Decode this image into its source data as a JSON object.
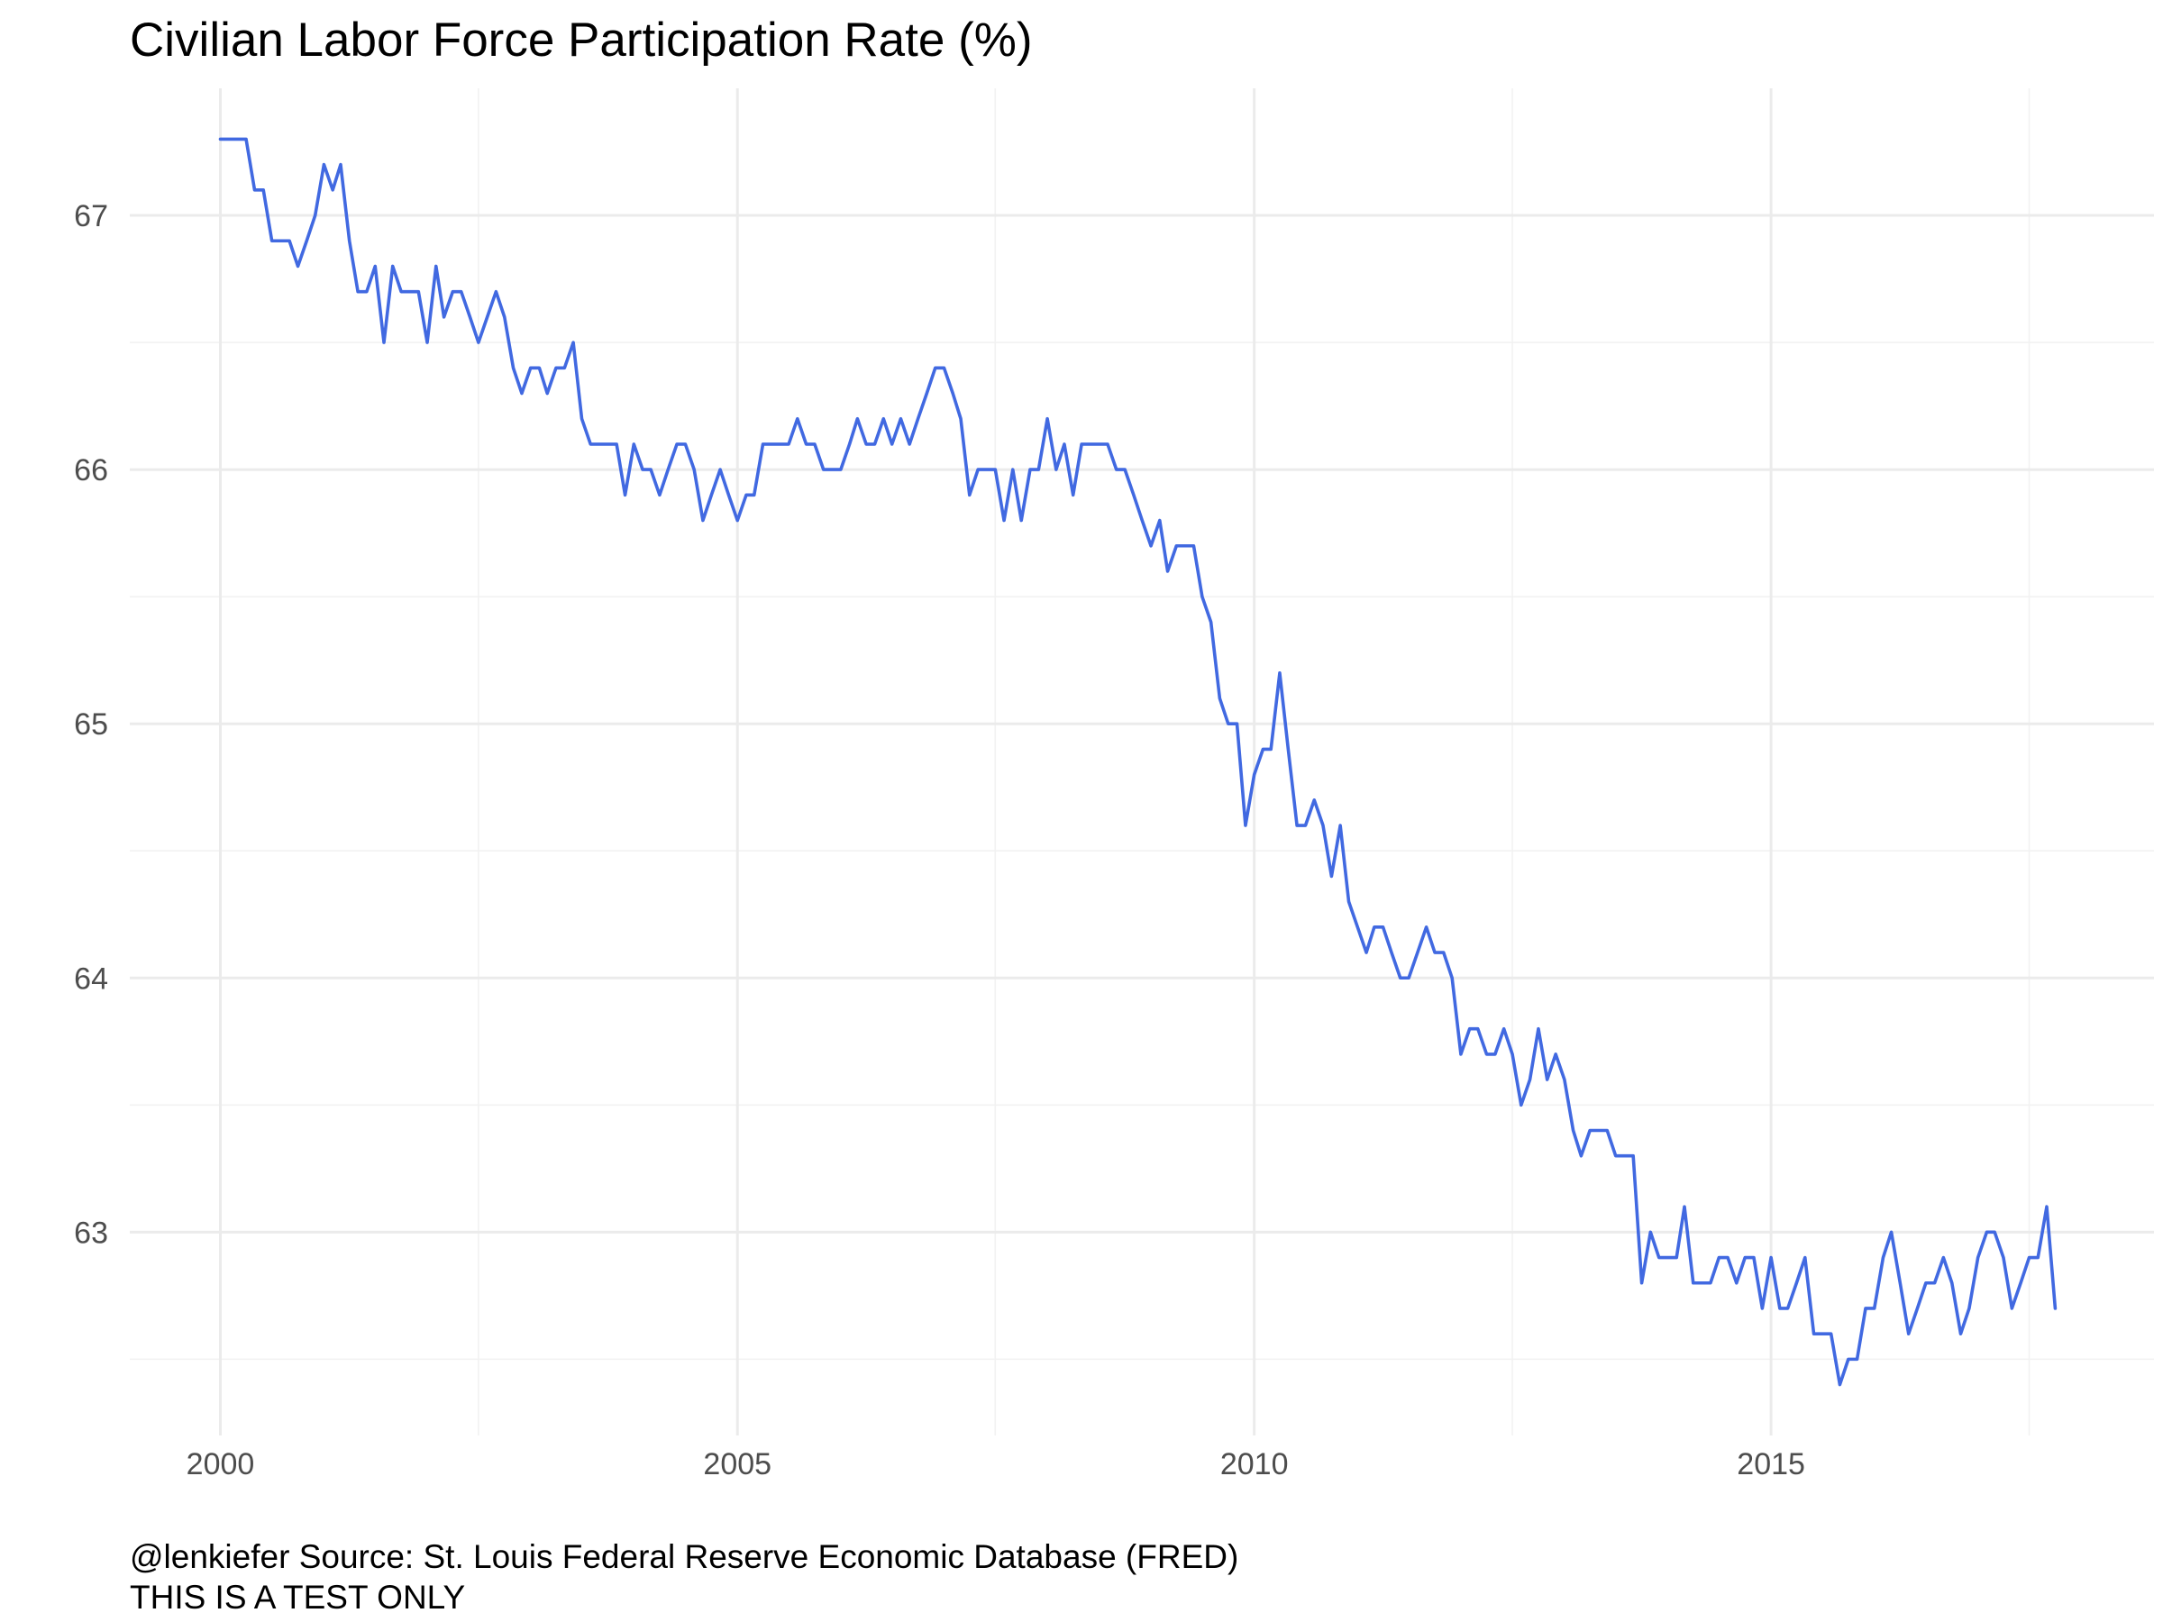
{
  "chart_data": {
    "type": "line",
    "title": "Civilian Labor Force Participation Rate (%)",
    "xlabel": "",
    "ylabel": "",
    "caption_lines": [
      "@lenkiefer Source: St. Louis Federal Reserve Economic Database (FRED)",
      "THIS IS A TEST ONLY"
    ],
    "x_ticks": [
      2000,
      2005,
      2010,
      2015
    ],
    "y_ticks": [
      63,
      64,
      65,
      66,
      67
    ],
    "xlim": [
      "1999-02-15",
      "2018-09-15"
    ],
    "ylim": [
      62.2,
      67.5
    ],
    "grid": true,
    "legend": "none",
    "color": "#4169e1",
    "series": [
      {
        "x": [
          "2000-01-01",
          "2000-02-01",
          "2000-03-01",
          "2000-04-01",
          "2000-05-01",
          "2000-06-01",
          "2000-07-01",
          "2000-08-01",
          "2000-09-01",
          "2000-10-01",
          "2000-11-01",
          "2000-12-01",
          "2001-01-01",
          "2001-02-01",
          "2001-03-01",
          "2001-04-01",
          "2001-05-01",
          "2001-06-01",
          "2001-07-01",
          "2001-08-01",
          "2001-09-01",
          "2001-10-01",
          "2001-11-01",
          "2001-12-01",
          "2002-01-01",
          "2002-02-01",
          "2002-03-01",
          "2002-04-01",
          "2002-05-01",
          "2002-06-01",
          "2002-07-01",
          "2002-08-01",
          "2002-09-01",
          "2002-10-01",
          "2002-11-01",
          "2002-12-01",
          "2003-01-01",
          "2003-02-01",
          "2003-03-01",
          "2003-04-01",
          "2003-05-01",
          "2003-06-01",
          "2003-07-01",
          "2003-08-01",
          "2003-09-01",
          "2003-10-01",
          "2003-11-01",
          "2003-12-01",
          "2004-01-01",
          "2004-02-01",
          "2004-03-01",
          "2004-04-01",
          "2004-05-01",
          "2004-06-01",
          "2004-07-01",
          "2004-08-01",
          "2004-09-01",
          "2004-10-01",
          "2004-11-01",
          "2004-12-01",
          "2005-01-01",
          "2005-02-01",
          "2005-03-01",
          "2005-04-01",
          "2005-05-01",
          "2005-06-01",
          "2005-07-01",
          "2005-08-01",
          "2005-09-01",
          "2005-10-01",
          "2005-11-01",
          "2005-12-01",
          "2006-01-01",
          "2006-02-01",
          "2006-03-01",
          "2006-04-01",
          "2006-05-01",
          "2006-06-01",
          "2006-07-01",
          "2006-08-01",
          "2006-09-01",
          "2006-10-01",
          "2006-11-01",
          "2006-12-01",
          "2007-01-01",
          "2007-02-01",
          "2007-03-01",
          "2007-04-01",
          "2007-05-01",
          "2007-06-01",
          "2007-07-01",
          "2007-08-01",
          "2007-09-01",
          "2007-10-01",
          "2007-11-01",
          "2007-12-01",
          "2008-01-01",
          "2008-02-01",
          "2008-03-01",
          "2008-04-01",
          "2008-05-01",
          "2008-06-01",
          "2008-07-01",
          "2008-08-01",
          "2008-09-01",
          "2008-10-01",
          "2008-11-01",
          "2008-12-01",
          "2009-01-01",
          "2009-02-01",
          "2009-03-01",
          "2009-04-01",
          "2009-05-01",
          "2009-06-01",
          "2009-07-01",
          "2009-08-01",
          "2009-09-01",
          "2009-10-01",
          "2009-11-01",
          "2009-12-01",
          "2010-01-01",
          "2010-02-01",
          "2010-03-01",
          "2010-04-01",
          "2010-05-01",
          "2010-06-01",
          "2010-07-01",
          "2010-08-01",
          "2010-09-01",
          "2010-10-01",
          "2010-11-01",
          "2010-12-01",
          "2011-01-01",
          "2011-02-01",
          "2011-03-01",
          "2011-04-01",
          "2011-05-01",
          "2011-06-01",
          "2011-07-01",
          "2011-08-01",
          "2011-09-01",
          "2011-10-01",
          "2011-11-01",
          "2011-12-01",
          "2012-01-01",
          "2012-02-01",
          "2012-03-01",
          "2012-04-01",
          "2012-05-01",
          "2012-06-01",
          "2012-07-01",
          "2012-08-01",
          "2012-09-01",
          "2012-10-01",
          "2012-11-01",
          "2012-12-01",
          "2013-01-01",
          "2013-02-01",
          "2013-03-01",
          "2013-04-01",
          "2013-05-01",
          "2013-06-01",
          "2013-07-01",
          "2013-08-01",
          "2013-09-01",
          "2013-10-01",
          "2013-11-01",
          "2013-12-01",
          "2014-01-01",
          "2014-02-01",
          "2014-03-01",
          "2014-04-01",
          "2014-05-01",
          "2014-06-01",
          "2014-07-01",
          "2014-08-01",
          "2014-09-01",
          "2014-10-01",
          "2014-11-01",
          "2014-12-01",
          "2015-01-01",
          "2015-02-01",
          "2015-03-01",
          "2015-04-01",
          "2015-05-01",
          "2015-06-01",
          "2015-07-01",
          "2015-08-01",
          "2015-09-01",
          "2015-10-01",
          "2015-11-01",
          "2015-12-01",
          "2016-01-01",
          "2016-02-01",
          "2016-03-01",
          "2016-04-01",
          "2016-05-01",
          "2016-06-01",
          "2016-07-01",
          "2016-08-01",
          "2016-09-01",
          "2016-10-01",
          "2016-11-01",
          "2016-12-01",
          "2017-01-01",
          "2017-02-01",
          "2017-03-01",
          "2017-04-01",
          "2017-05-01",
          "2017-06-01",
          "2017-07-01",
          "2017-08-01",
          "2017-09-01",
          "2017-10-01"
        ],
        "y": [
          67.3,
          67.3,
          67.3,
          67.3,
          67.1,
          67.1,
          66.9,
          66.9,
          66.9,
          66.8,
          66.9,
          67.0,
          67.2,
          67.1,
          67.2,
          66.9,
          66.7,
          66.7,
          66.8,
          66.5,
          66.8,
          66.7,
          66.7,
          66.7,
          66.5,
          66.8,
          66.6,
          66.7,
          66.7,
          66.6,
          66.5,
          66.6,
          66.7,
          66.6,
          66.4,
          66.3,
          66.4,
          66.4,
          66.3,
          66.4,
          66.4,
          66.5,
          66.2,
          66.1,
          66.1,
          66.1,
          66.1,
          65.9,
          66.1,
          66.0,
          66.0,
          65.9,
          66.0,
          66.1,
          66.1,
          66.0,
          65.8,
          65.9,
          66.0,
          65.9,
          65.8,
          65.9,
          65.9,
          66.1,
          66.1,
          66.1,
          66.1,
          66.2,
          66.1,
          66.1,
          66.0,
          66.0,
          66.0,
          66.1,
          66.2,
          66.1,
          66.1,
          66.2,
          66.1,
          66.2,
          66.1,
          66.2,
          66.3,
          66.4,
          66.4,
          66.3,
          66.2,
          65.9,
          66.0,
          66.0,
          66.0,
          65.8,
          66.0,
          65.8,
          66.0,
          66.0,
          66.2,
          66.0,
          66.1,
          65.9,
          66.1,
          66.1,
          66.1,
          66.1,
          66.0,
          66.0,
          65.9,
          65.8,
          65.7,
          65.8,
          65.6,
          65.7,
          65.7,
          65.7,
          65.5,
          65.4,
          65.1,
          65.0,
          65.0,
          64.6,
          64.8,
          64.9,
          64.9,
          65.2,
          64.9,
          64.6,
          64.6,
          64.7,
          64.6,
          64.4,
          64.6,
          64.3,
          64.2,
          64.1,
          64.2,
          64.2,
          64.1,
          64.0,
          64.0,
          64.1,
          64.2,
          64.1,
          64.1,
          64.0,
          63.7,
          63.8,
          63.8,
          63.7,
          63.7,
          63.8,
          63.7,
          63.5,
          63.6,
          63.8,
          63.6,
          63.7,
          63.6,
          63.4,
          63.3,
          63.4,
          63.4,
          63.4,
          63.3,
          63.3,
          63.3,
          62.8,
          63.0,
          62.9,
          62.9,
          62.9,
          63.1,
          62.8,
          62.8,
          62.8,
          62.9,
          62.9,
          62.8,
          62.9,
          62.9,
          62.7,
          62.9,
          62.7,
          62.7,
          62.8,
          62.9,
          62.6,
          62.6,
          62.6,
          62.4,
          62.5,
          62.5,
          62.7,
          62.7,
          62.9,
          63.0,
          62.8,
          62.6,
          62.7,
          62.8,
          62.8,
          62.9,
          62.8,
          62.6,
          62.7,
          62.9,
          63.0,
          63.0,
          62.9,
          62.7,
          62.8,
          62.9,
          62.9,
          63.1,
          62.7
        ]
      }
    ]
  }
}
